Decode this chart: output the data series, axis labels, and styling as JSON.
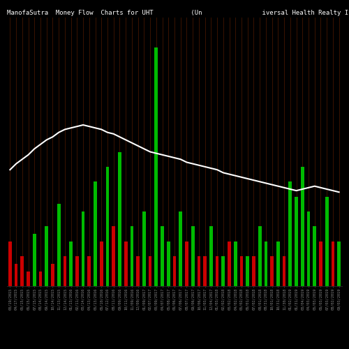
{
  "title": "ManofaSutra  Money Flow  Charts for UHT          (Un                iversal Health Realty Income   Trust",
  "background_color": "#000000",
  "line_color": "#ffffff",
  "green_color": "#00bb00",
  "red_color": "#cc0000",
  "orange_color": "#cc4400",
  "n_bars": 55,
  "bar_heights": [
    3,
    1.5,
    2,
    1,
    3.5,
    1,
    4,
    1.5,
    5.5,
    2,
    3,
    2,
    5,
    2,
    7,
    3,
    8,
    4,
    9,
    3,
    4,
    2,
    5,
    2,
    16,
    4,
    3,
    2,
    5,
    3,
    4,
    2,
    2,
    4,
    2,
    2,
    3,
    3,
    2,
    2,
    2,
    4,
    3,
    2,
    3,
    2,
    7,
    6,
    8,
    5,
    4,
    3,
    6,
    3,
    3
  ],
  "bar_colors": [
    "r",
    "r",
    "r",
    "r",
    "g",
    "r",
    "g",
    "r",
    "g",
    "r",
    "g",
    "r",
    "g",
    "r",
    "g",
    "r",
    "g",
    "r",
    "g",
    "r",
    "g",
    "r",
    "g",
    "r",
    "g",
    "g",
    "g",
    "r",
    "g",
    "r",
    "g",
    "r",
    "r",
    "g",
    "r",
    "g",
    "r",
    "g",
    "r",
    "g",
    "r",
    "g",
    "g",
    "r",
    "g",
    "r",
    "g",
    "g",
    "g",
    "g",
    "g",
    "r",
    "g",
    "r",
    "g"
  ],
  "line_values": [
    7.8,
    8.2,
    8.5,
    8.8,
    9.2,
    9.5,
    9.8,
    10.0,
    10.3,
    10.5,
    10.6,
    10.7,
    10.8,
    10.7,
    10.6,
    10.5,
    10.3,
    10.2,
    10.0,
    9.8,
    9.6,
    9.4,
    9.2,
    9.0,
    8.9,
    8.8,
    8.7,
    8.6,
    8.5,
    8.3,
    8.2,
    8.1,
    8.0,
    7.9,
    7.8,
    7.6,
    7.5,
    7.4,
    7.3,
    7.2,
    7.1,
    7.0,
    6.9,
    6.8,
    6.7,
    6.6,
    6.5,
    6.4,
    6.5,
    6.6,
    6.7,
    6.6,
    6.5,
    6.4,
    6.3
  ],
  "xlabel_dates": [
    "03/19/2015",
    "04/17/2015",
    "05/15/2015",
    "06/15/2015",
    "07/15/2015",
    "08/14/2015",
    "09/14/2015",
    "10/14/2015",
    "11/13/2015",
    "12/14/2015",
    "01/13/2016",
    "02/11/2016",
    "03/14/2016",
    "04/13/2016",
    "05/13/2016",
    "06/10/2016",
    "07/12/2016",
    "08/11/2016",
    "09/09/2016",
    "10/11/2016",
    "11/09/2016",
    "12/09/2016",
    "01/09/2017",
    "02/07/2017",
    "03/09/2017",
    "04/07/2017",
    "05/08/2017",
    "06/06/2017",
    "07/06/2017",
    "08/07/2017",
    "09/06/2017",
    "10/06/2017",
    "11/03/2017",
    "12/04/2017",
    "01/03/2018",
    "02/02/2018",
    "03/02/2018",
    "04/02/2018",
    "05/02/2018",
    "06/01/2018",
    "07/02/2018",
    "08/01/2018",
    "08/31/2018",
    "10/01/2018",
    "10/31/2018",
    "11/30/2018",
    "01/02/2019",
    "01/31/2019",
    "03/04/2019",
    "04/03/2019",
    "05/03/2019",
    "06/03/2019",
    "07/03/2019",
    "08/02/2019",
    "09/03/2019"
  ],
  "ylim": [
    0,
    18
  ],
  "line_ylim_scale": 1.6,
  "title_fontsize": 6.5,
  "tick_fontsize": 3.8,
  "line_width": 1.5,
  "fig_width": 5.0,
  "fig_height": 5.0,
  "dpi": 100
}
